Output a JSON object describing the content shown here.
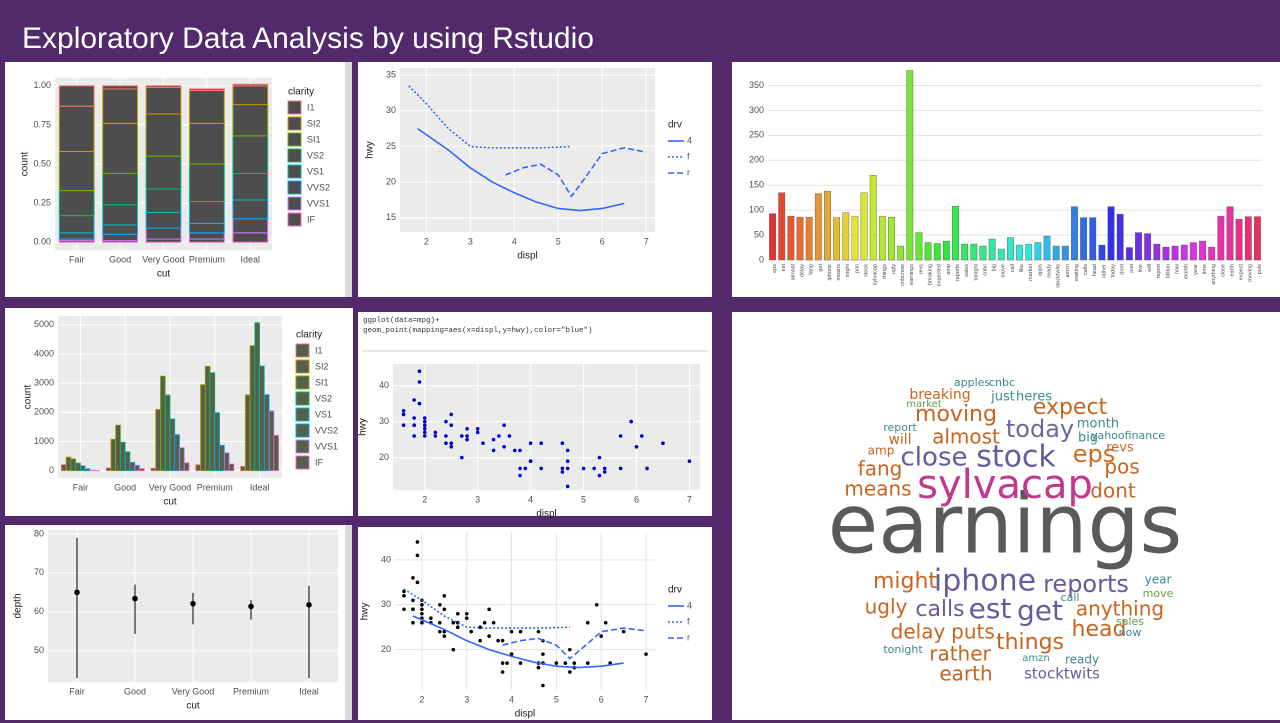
{
  "title": "Exploratory Data Analysis by using Rstudio",
  "chart_data": [
    {
      "type": "bar",
      "position": "fill",
      "categories": [
        "Fair",
        "Good",
        "Very Good",
        "Premium",
        "Ideal"
      ],
      "x_label": "cut",
      "y_label": "count",
      "legend_title": "clarity",
      "fill": "#4d4d4d",
      "grid": true,
      "ylim": [
        -0.05,
        1.05
      ],
      "yticks": [
        {
          "value": 0,
          "label": "0.00"
        },
        {
          "value": 0.25,
          "label": "0.25"
        },
        {
          "value": 0.5,
          "label": "0.50"
        },
        {
          "value": 0.75,
          "label": "0.75"
        },
        {
          "value": 1,
          "label": "1.00"
        }
      ],
      "series": [
        {
          "name": "I1",
          "color": "#f8766d",
          "values": [
            0.13,
            0.02,
            0.01,
            0.01,
            0.01
          ]
        },
        {
          "name": "SI2",
          "color": "#cd9600",
          "values": [
            0.29,
            0.22,
            0.17,
            0.21,
            0.12
          ]
        },
        {
          "name": "SI1",
          "color": "#7cae00",
          "values": [
            0.25,
            0.32,
            0.27,
            0.26,
            0.2
          ]
        },
        {
          "name": "VS2",
          "color": "#00be67",
          "values": [
            0.16,
            0.2,
            0.21,
            0.24,
            0.24
          ]
        },
        {
          "name": "VS1",
          "color": "#00bfc4",
          "values": [
            0.11,
            0.13,
            0.15,
            0.14,
            0.17
          ]
        },
        {
          "name": "VVS2",
          "color": "#00a9ff",
          "values": [
            0.04,
            0.06,
            0.1,
            0.06,
            0.12
          ]
        },
        {
          "name": "VVS1",
          "color": "#c77cff",
          "values": [
            0.01,
            0.04,
            0.07,
            0.04,
            0.09
          ]
        },
        {
          "name": "IF",
          "color": "#ff61cc",
          "values": [
            0.01,
            0.01,
            0.02,
            0.02,
            0.06
          ]
        }
      ]
    },
    {
      "type": "line",
      "x_label": "displ",
      "y_label": "hwy",
      "legend_title": "drv",
      "grid": true,
      "xlim": [
        1.4,
        7.2
      ],
      "xticks": [
        2,
        3,
        4,
        5,
        6,
        7
      ],
      "ylim": [
        13,
        36
      ],
      "yticks": [
        15,
        20,
        25,
        30,
        35
      ],
      "series": [
        {
          "name": "4",
          "color": "#3366ff",
          "dash": "solid",
          "x": [
            1.8,
            2.5,
            3,
            3.5,
            4,
            4.5,
            5,
            5.5,
            6,
            6.5
          ],
          "values": [
            27.5,
            24.5,
            22,
            20,
            18.5,
            17.2,
            16.3,
            16,
            16.3,
            17
          ]
        },
        {
          "name": "f",
          "color": "#3366ff",
          "dash": "dotted",
          "x": [
            1.6,
            2,
            2.5,
            3,
            3.5,
            4,
            4.5,
            5,
            5.3
          ],
          "values": [
            33.5,
            31,
            27.5,
            25,
            24.8,
            24.8,
            24.8,
            24.9,
            25
          ]
        },
        {
          "name": "r",
          "color": "#3366ff",
          "dash": "dashed",
          "x": [
            3.8,
            4.2,
            4.6,
            5,
            5.3,
            5.6,
            6,
            6.5,
            7
          ],
          "values": [
            21,
            22,
            22.5,
            21,
            18,
            20.5,
            24,
            24.8,
            24.2
          ]
        }
      ]
    },
    {
      "type": "bar",
      "color_scale": "hue",
      "grid": true,
      "ylim": [
        0,
        385
      ],
      "yticks": [
        0,
        50,
        100,
        150,
        200,
        250,
        300,
        350
      ],
      "categories": [
        "eps",
        "est",
        "almost",
        "delay",
        "fang",
        "get",
        "iphone",
        "means",
        "might",
        "pos",
        "stock",
        "sylvacap",
        "things",
        "ugly",
        "cnbcnow",
        "earnings",
        "revs",
        "breaking",
        "expected",
        "amp",
        "reports",
        "sales",
        "tonight",
        "cnbc",
        "big",
        "move",
        "call",
        "like",
        "market",
        "apps",
        "ready",
        "stocktwits",
        "amzn",
        "waiting",
        "calls",
        "head",
        "rather",
        "today",
        "dont",
        "just",
        "live",
        "will",
        "report",
        "billion",
        "now",
        "month",
        "year",
        "time",
        "anything",
        "close",
        "earth",
        "expect",
        "moving",
        "puts"
      ],
      "values": [
        93,
        135,
        88,
        86,
        86,
        133,
        138,
        85,
        95,
        88,
        135,
        170,
        88,
        86,
        28,
        380,
        55,
        35,
        33,
        38,
        108,
        32,
        32,
        28,
        42,
        22,
        45,
        30,
        32,
        35,
        48,
        28,
        28,
        107,
        85,
        85,
        30,
        107,
        92,
        25,
        55,
        53,
        32,
        26,
        28,
        30,
        35,
        38,
        26,
        88,
        107,
        82,
        87,
        87
      ]
    },
    {
      "type": "bar",
      "position": "dodge",
      "categories": [
        "Fair",
        "Good",
        "Very Good",
        "Premium",
        "Ideal"
      ],
      "x_label": "cut",
      "y_label": "count",
      "legend_title": "clarity",
      "fill": "#55604a",
      "grid": true,
      "ylim": [
        -250,
        5300
      ],
      "yticks": [
        0,
        1000,
        2000,
        3000,
        4000,
        5000
      ],
      "series": [
        {
          "name": "I1",
          "color": "#f8766d",
          "values": [
            210,
            96,
            84,
            205,
            146
          ]
        },
        {
          "name": "SI2",
          "color": "#cd9600",
          "values": [
            466,
            1081,
            2100,
            2949,
            2598
          ]
        },
        {
          "name": "SI1",
          "color": "#7cae00",
          "values": [
            408,
            1560,
            3240,
            3575,
            4282
          ]
        },
        {
          "name": "VS2",
          "color": "#00be67",
          "values": [
            261,
            978,
            2591,
            3357,
            5071
          ]
        },
        {
          "name": "VS1",
          "color": "#00bfc4",
          "values": [
            170,
            648,
            1775,
            1989,
            3589
          ]
        },
        {
          "name": "VVS2",
          "color": "#00a9ff",
          "values": [
            69,
            286,
            1235,
            870,
            2606
          ]
        },
        {
          "name": "VVS1",
          "color": "#c77cff",
          "values": [
            17,
            186,
            789,
            616,
            2047
          ]
        },
        {
          "name": "IF",
          "color": "#ff61cc",
          "values": [
            9,
            71,
            268,
            230,
            1212
          ]
        }
      ]
    },
    {
      "type": "scatter",
      "code": [
        "ggplot(data=mpg)+",
        "geom_point(mapping=aes(x=displ,y=hwy),color=\"blue\")"
      ],
      "x_label": "displ",
      "y_label": "hwy",
      "color": "#0000cc",
      "grid": true,
      "xlim": [
        1.4,
        7.2
      ],
      "xticks": [
        2,
        3,
        4,
        5,
        6,
        7
      ],
      "ylim": [
        11,
        46
      ],
      "yticks": [
        20,
        30,
        40
      ],
      "x": [
        1.6,
        1.6,
        1.6,
        1.8,
        1.8,
        1.8,
        1.8,
        1.9,
        1.9,
        2,
        2,
        2,
        2,
        2,
        2,
        2.2,
        2.2,
        2.4,
        2.4,
        2.4,
        2.5,
        2.5,
        2.5,
        2.5,
        2.7,
        2.7,
        2.8,
        2.8,
        3,
        3,
        3.1,
        3.3,
        3.3,
        3.4,
        3.5,
        3.5,
        3.6,
        3.8,
        3.8,
        3.9,
        4,
        4,
        4,
        4.2,
        4.2,
        4.6,
        4.6,
        4.7,
        4.7,
        4.7,
        5,
        5.2,
        5.3,
        5.3,
        5.4,
        5.4,
        5.7,
        5.7,
        6,
        6.1,
        6.2,
        6.5,
        7,
        3.7,
        4.6,
        2.8,
        3.8,
        4.7,
        5.9,
        1.9,
        1.8
      ],
      "values": [
        33,
        32,
        29,
        29,
        31,
        36,
        26,
        44,
        41,
        29,
        30,
        26,
        28,
        31,
        27,
        26,
        27,
        24,
        30,
        26,
        29,
        23,
        32,
        24,
        20,
        26,
        25,
        26,
        28,
        27,
        24,
        22,
        25,
        26,
        29,
        23,
        26,
        22,
        17,
        17,
        24,
        19,
        19,
        24,
        17,
        16,
        17,
        12,
        19,
        17,
        17,
        17,
        20,
        15,
        17,
        16,
        26,
        17,
        23,
        26,
        17,
        24,
        19,
        22,
        24,
        28,
        15,
        22,
        30,
        35,
        29
      ]
    },
    {
      "type": "pointrange",
      "x_label": "cut",
      "y_label": "depth",
      "grid": true,
      "categories": [
        "Fair",
        "Good",
        "Very Good",
        "Premium",
        "Ideal"
      ],
      "ylim": [
        42,
        81
      ],
      "yticks": [
        50,
        60,
        70,
        80
      ],
      "values": [
        65,
        63.4,
        62.1,
        61.4,
        61.8
      ],
      "low": [
        43,
        54.3,
        56.8,
        58,
        43
      ],
      "high": [
        79,
        67,
        64.9,
        63,
        66.7
      ]
    },
    {
      "type": "scatter",
      "x_label": "displ",
      "y_label": "hwy",
      "legend_title": "drv",
      "color": "#000000",
      "grid": true,
      "xlim": [
        1.4,
        7.2
      ],
      "xticks": [
        2,
        3,
        4,
        5,
        6,
        7
      ],
      "ylim": [
        11,
        46
      ],
      "yticks": [
        20,
        30,
        40
      ],
      "x": [
        1.6,
        1.6,
        1.6,
        1.8,
        1.8,
        1.8,
        1.8,
        1.9,
        1.9,
        2,
        2,
        2,
        2,
        2,
        2,
        2.2,
        2.2,
        2.4,
        2.4,
        2.4,
        2.5,
        2.5,
        2.5,
        2.5,
        2.7,
        2.7,
        2.8,
        2.8,
        3,
        3,
        3.1,
        3.3,
        3.3,
        3.4,
        3.5,
        3.5,
        3.6,
        3.8,
        3.8,
        3.9,
        4,
        4,
        4,
        4.2,
        4.2,
        4.6,
        4.6,
        4.7,
        4.7,
        4.7,
        5,
        5.2,
        5.3,
        5.3,
        5.4,
        5.4,
        5.7,
        5.7,
        6,
        6.1,
        6.2,
        6.5,
        7,
        3.7,
        4.6,
        2.8,
        3.8,
        4.7,
        5.9,
        1.9,
        1.8
      ],
      "values": [
        33,
        32,
        29,
        29,
        31,
        36,
        26,
        44,
        41,
        29,
        30,
        26,
        28,
        31,
        27,
        26,
        27,
        24,
        30,
        26,
        29,
        23,
        32,
        24,
        20,
        26,
        25,
        26,
        28,
        27,
        24,
        22,
        25,
        26,
        29,
        23,
        26,
        22,
        17,
        17,
        24,
        19,
        19,
        24,
        17,
        16,
        17,
        12,
        19,
        17,
        17,
        17,
        20,
        15,
        17,
        16,
        26,
        17,
        23,
        26,
        17,
        24,
        19,
        22,
        24,
        28,
        15,
        22,
        30,
        35,
        29
      ],
      "series": [
        {
          "name": "4",
          "color": "#3366ff",
          "dash": "solid",
          "x": [
            1.8,
            2.5,
            3,
            3.5,
            4,
            4.5,
            5,
            5.5,
            6,
            6.5
          ],
          "values": [
            27.5,
            24.5,
            22,
            20,
            18.5,
            17.2,
            16.3,
            16,
            16.3,
            17
          ]
        },
        {
          "name": "f",
          "color": "#3366ff",
          "dash": "dotted",
          "x": [
            1.6,
            2,
            2.5,
            3,
            3.5,
            4,
            4.5,
            5,
            5.3
          ],
          "values": [
            33.5,
            31,
            27.5,
            25,
            24.8,
            24.8,
            24.8,
            24.9,
            25
          ]
        },
        {
          "name": "r",
          "color": "#3366ff",
          "dash": "dashed",
          "x": [
            3.8,
            4.2,
            4.6,
            5,
            5.3,
            5.6,
            6,
            6.5,
            7
          ],
          "values": [
            21,
            22,
            22.5,
            21,
            18,
            20.5,
            24,
            24.8,
            24.2
          ]
        }
      ]
    },
    {
      "type": "wordcloud",
      "words": [
        {
          "text": "earnings",
          "color": "#5a5a5a"
        },
        {
          "text": "sylvacap",
          "color": "#c2388c"
        },
        {
          "text": "stock",
          "color": "#6a5a9c"
        },
        {
          "text": "close",
          "color": "#6a5a9c"
        },
        {
          "text": "eps",
          "color": "#d2691e"
        },
        {
          "text": "today",
          "color": "#6a6a9a"
        },
        {
          "text": "expect",
          "color": "#c8641e"
        },
        {
          "text": "moving",
          "color": "#c8641e"
        },
        {
          "text": "almost",
          "color": "#c8641e"
        },
        {
          "text": "fang",
          "color": "#c8641e"
        },
        {
          "text": "means",
          "color": "#c8641e"
        },
        {
          "text": "pos",
          "color": "#c8641e"
        },
        {
          "text": "dont",
          "color": "#c8641e"
        },
        {
          "text": "iphone",
          "color": "#6a5a9c"
        },
        {
          "text": "might",
          "color": "#c8641e"
        },
        {
          "text": "reports",
          "color": "#6a5a9c"
        },
        {
          "text": "ugly",
          "color": "#c8641e"
        },
        {
          "text": "calls",
          "color": "#6a5a9c"
        },
        {
          "text": "est",
          "color": "#6a5a9c"
        },
        {
          "text": "get",
          "color": "#6a5a9c"
        },
        {
          "text": "anything",
          "color": "#c8641e"
        },
        {
          "text": "delay",
          "color": "#c8641e"
        },
        {
          "text": "puts",
          "color": "#c8641e"
        },
        {
          "text": "things",
          "color": "#c8641e"
        },
        {
          "text": "head",
          "color": "#c8641e"
        },
        {
          "text": "rather",
          "color": "#c8641e"
        },
        {
          "text": "earth",
          "color": "#c8641e"
        },
        {
          "text": "stocktwits",
          "color": "#6a5a9c"
        },
        {
          "text": "will",
          "color": "#c8641e"
        },
        {
          "text": "big",
          "color": "#3a8a8a"
        },
        {
          "text": "month",
          "color": "#3a8a8a"
        },
        {
          "text": "yahoofinance",
          "color": "#3a8a8a"
        },
        {
          "text": "revs",
          "color": "#c8641e"
        },
        {
          "text": "breaking",
          "color": "#c8641e"
        },
        {
          "text": "just",
          "color": "#3a8a8a"
        },
        {
          "text": "heres",
          "color": "#3a8a8a"
        },
        {
          "text": "apples",
          "color": "#3a8a8a"
        },
        {
          "text": "report",
          "color": "#3a8a8a"
        },
        {
          "text": "amp",
          "color": "#c8641e"
        },
        {
          "text": "move",
          "color": "#6a9a4a"
        },
        {
          "text": "year",
          "color": "#3a8a8a"
        },
        {
          "text": "now",
          "color": "#3a8a8a"
        },
        {
          "text": "sales",
          "color": "#6a9a4a"
        },
        {
          "text": "ready",
          "color": "#3a8a8a"
        },
        {
          "text": "tonight",
          "color": "#3a8a8a"
        },
        {
          "text": "cnbc",
          "color": "#3a8a8a"
        },
        {
          "text": "market",
          "color": "#6a9a4a"
        },
        {
          "text": "amzn",
          "color": "#3a8a8a"
        },
        {
          "text": "call",
          "color": "#3a8a8a"
        }
      ]
    }
  ]
}
